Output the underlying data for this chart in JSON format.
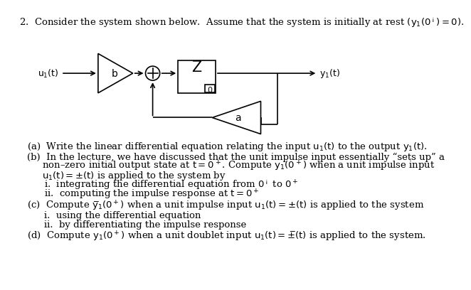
{
  "background_color": "#ffffff",
  "line_color": "#000000",
  "u1_label": "$u_1(t)$",
  "b_label": "$b$",
  "integral_top_label": "$\\int$",
  "integral_bot_label": "$0$",
  "a_label": "$a$",
  "y1_label": "$y_1(t)$",
  "header": "2.  Consider the system shown below.  Assume that the system is initially at rest $(y_1(0^-) = 0)$.",
  "qa": "(a)  Write the linear differential equation relating the input $u_1(t)$ to the output $y_1(t)$.",
  "qb1": "(b)  In the lecture, we have discussed that the unit impulse input essentially “sets up” a",
  "qb2": "     non–zero initial output state at $t = 0^+$. Compute $y_1(0^+)$ when a unit impulse input",
  "qb3": "     $u_1(t) = \\delta(t)$ is applied to the system by",
  "qbi": "i.  integrating the differential equation from $0^-$ to $0^+$",
  "qbii": "ii.  computing the impulse response at $t = 0^+$",
  "qc": "(c)  Compute $\\dot{y}_1(0^+)$ when a unit impulse input $u_1(t) = \\delta(t)$ is applied to the system",
  "qci": "i.  using the differential equation",
  "qcii": "ii.  by differentiating the impulse response",
  "qd": "(d)  Compute $y_1(0^+)$ when a unit doublet input $u_1(t) = \\dot{\\delta}(t)$ is applied to the system."
}
